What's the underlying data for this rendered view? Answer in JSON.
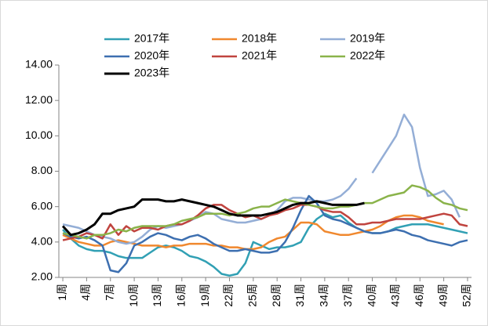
{
  "chart_data": {
    "type": "line",
    "categories": [
      "1周",
      null,
      null,
      "4周",
      null,
      null,
      "7周",
      null,
      null,
      "10周",
      null,
      null,
      "13周",
      null,
      null,
      "16周",
      null,
      null,
      "19周",
      null,
      null,
      "22周",
      null,
      null,
      "25周",
      null,
      null,
      "28周",
      null,
      null,
      "31周",
      null,
      null,
      "34周",
      null,
      null,
      "37周",
      null,
      null,
      "40周",
      null,
      null,
      "43周",
      null,
      null,
      "46周",
      null,
      null,
      "49周",
      null,
      null,
      "52周"
    ],
    "ylim": [
      2,
      14
    ],
    "yticks": [
      {
        "value": 2,
        "label": "2.00"
      },
      {
        "value": 4,
        "label": "4.00"
      },
      {
        "value": 6,
        "label": "6.00"
      },
      {
        "value": 8,
        "label": "8.00"
      },
      {
        "value": 10,
        "label": "10.00"
      },
      {
        "value": 12,
        "label": "12.00"
      },
      {
        "value": 14,
        "label": "14.00"
      }
    ],
    "grid": false,
    "legend": "top",
    "series": [
      {
        "name": "2017年",
        "color": "#31a0b4",
        "values": [
          4.7,
          4.2,
          3.8,
          3.6,
          3.5,
          3.5,
          3.4,
          3.2,
          3.1,
          3.1,
          3.1,
          3.4,
          3.7,
          3.8,
          3.7,
          3.5,
          3.2,
          3.1,
          2.9,
          2.6,
          2.2,
          2.1,
          2.2,
          2.8,
          4.0,
          3.8,
          3.6,
          3.7,
          3.7,
          3.8,
          4.0,
          4.8,
          5.3,
          5.6,
          5.4,
          5.5,
          5.1,
          4.8,
          4.6,
          4.5,
          4.5,
          4.6,
          4.8,
          4.9,
          5.0,
          5.0,
          5.0,
          4.9,
          4.8,
          4.7,
          4.6,
          4.5
        ]
      },
      {
        "name": "2018年",
        "color": "#f0882e",
        "values": [
          4.4,
          4.2,
          4.0,
          3.9,
          3.8,
          3.8,
          4.0,
          4.1,
          4.0,
          3.9,
          3.8,
          3.8,
          3.8,
          3.7,
          3.8,
          3.8,
          3.9,
          3.9,
          3.9,
          3.8,
          3.8,
          3.7,
          3.7,
          3.6,
          3.6,
          3.7,
          4.0,
          4.2,
          4.3,
          4.7,
          5.1,
          5.1,
          5.0,
          4.6,
          4.5,
          4.4,
          4.4,
          4.5,
          4.6,
          4.7,
          4.9,
          5.2,
          5.4,
          5.5,
          5.5,
          5.4,
          5.2,
          5.1,
          5.0,
          null,
          null,
          null
        ]
      },
      {
        "name": "2019年",
        "color": "#94aed6",
        "values": [
          5.0,
          4.9,
          4.8,
          4.6,
          4.4,
          4.3,
          4.2,
          4.0,
          3.9,
          4.0,
          4.3,
          4.7,
          4.9,
          4.8,
          4.9,
          5.0,
          5.2,
          5.4,
          5.7,
          5.6,
          5.3,
          5.2,
          5.1,
          5.1,
          5.2,
          5.3,
          5.5,
          5.8,
          6.3,
          6.5,
          6.5,
          6.4,
          6.3,
          6.3,
          6.4,
          6.6,
          7.0,
          7.6,
          null,
          7.9,
          8.6,
          9.3,
          10.0,
          11.2,
          10.5,
          8.2,
          6.6,
          6.7,
          6.9,
          6.4,
          5.4,
          null
        ]
      },
      {
        "name": "2020年",
        "color": "#3d6fb0",
        "values": [
          4.5,
          4.3,
          4.2,
          4.3,
          4.1,
          3.8,
          2.4,
          2.3,
          2.8,
          3.8,
          4.0,
          4.3,
          4.5,
          4.4,
          4.2,
          4.1,
          4.3,
          4.4,
          4.2,
          3.9,
          3.7,
          3.5,
          3.5,
          3.6,
          3.5,
          3.4,
          3.4,
          3.5,
          4.0,
          4.8,
          5.8,
          6.6,
          6.2,
          5.5,
          5.3,
          5.2,
          5.0,
          4.8,
          4.6,
          4.5,
          4.5,
          4.6,
          4.7,
          4.6,
          4.4,
          4.3,
          4.1,
          4.0,
          3.9,
          3.8,
          4.0,
          4.1
        ]
      },
      {
        "name": "2021年",
        "color": "#c0443f",
        "values": [
          4.1,
          4.2,
          4.3,
          4.5,
          4.4,
          4.2,
          5.0,
          4.4,
          4.9,
          4.6,
          4.8,
          4.8,
          4.7,
          4.9,
          5.0,
          5.0,
          5.2,
          5.5,
          5.9,
          6.1,
          6.1,
          5.8,
          5.6,
          5.4,
          5.5,
          5.3,
          5.5,
          5.6,
          5.8,
          5.9,
          6.1,
          6.1,
          6.0,
          5.8,
          5.7,
          5.7,
          5.4,
          5.0,
          5.0,
          5.1,
          5.1,
          5.2,
          5.3,
          5.3,
          5.3,
          5.3,
          5.4,
          5.5,
          5.6,
          5.5,
          5.0,
          4.9
        ]
      },
      {
        "name": "2022年",
        "color": "#8ab34a",
        "values": [
          4.5,
          4.4,
          4.3,
          4.2,
          4.4,
          4.4,
          4.5,
          4.7,
          4.6,
          4.8,
          4.9,
          4.9,
          4.9,
          4.9,
          5.0,
          5.2,
          5.3,
          5.4,
          5.6,
          5.6,
          5.6,
          5.5,
          5.6,
          5.7,
          5.9,
          6.0,
          6.0,
          6.2,
          6.4,
          6.3,
          6.2,
          6.1,
          6.0,
          5.9,
          5.9,
          6.0,
          6.0,
          6.1,
          6.2,
          6.2,
          6.4,
          6.6,
          6.7,
          6.8,
          7.2,
          7.1,
          6.9,
          6.5,
          6.2,
          6.1,
          5.9,
          5.8
        ]
      },
      {
        "name": "2023年",
        "color": "#000000",
        "values": [
          4.9,
          4.4,
          4.5,
          4.7,
          5.0,
          5.6,
          5.6,
          5.8,
          5.9,
          6.0,
          6.4,
          6.4,
          6.4,
          6.3,
          6.3,
          6.4,
          6.3,
          6.2,
          6.1,
          6.0,
          5.8,
          5.6,
          5.5,
          5.5,
          5.5,
          5.5,
          5.6,
          5.7,
          5.9,
          6.1,
          6.2,
          6.2,
          6.3,
          6.2,
          6.1,
          6.1,
          6.1,
          6.1,
          6.2,
          null,
          null,
          null,
          null,
          null,
          null,
          null,
          null,
          null,
          null,
          null,
          null,
          null
        ]
      }
    ]
  }
}
